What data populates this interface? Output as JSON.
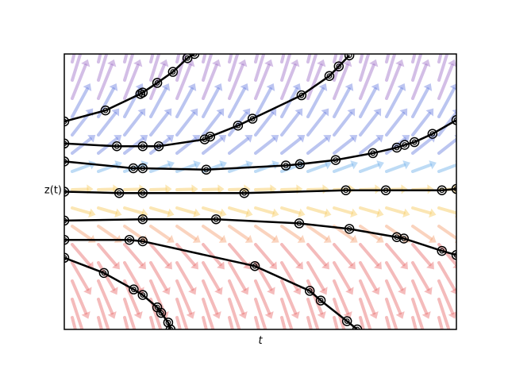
{
  "chart_data": {
    "type": "trajectory",
    "x_label": "t",
    "y_label": "z(t)",
    "xlim": [
      0,
      1
    ],
    "ylim": [
      -1,
      1
    ],
    "color": "#000000",
    "series": [
      {
        "x": [
          0,
          0.105,
          0.194,
          0.2,
          0.237,
          0.277,
          0.314,
          0.332
        ],
        "values": [
          0.51,
          0.59,
          0.71,
          0.72,
          0.79,
          0.87,
          0.97,
          1.0
        ]
      },
      {
        "x": [
          0,
          0.134,
          0.2,
          0.241,
          0.358,
          0.372,
          0.443,
          0.48,
          0.605,
          0.676,
          0.7,
          0.727
        ],
        "values": [
          0.35,
          0.33,
          0.33,
          0.33,
          0.38,
          0.4,
          0.48,
          0.53,
          0.7,
          0.84,
          0.91,
          0.99
        ]
      },
      {
        "x": [
          0,
          0.176,
          0.2,
          0.362,
          0.565,
          0.601,
          0.692,
          0.787,
          0.848,
          0.868,
          0.893,
          0.939,
          1.0
        ],
        "values": [
          0.22,
          0.17,
          0.17,
          0.16,
          0.19,
          0.2,
          0.23,
          0.28,
          0.32,
          0.34,
          0.36,
          0.42,
          0.52
        ]
      },
      {
        "x": [
          0,
          0.14,
          0.2,
          0.459,
          0.718,
          0.82,
          0.963,
          1.0
        ],
        "values": [
          0.0,
          -0.01,
          -0.01,
          -0.01,
          0.01,
          0.01,
          0.01,
          0.02
        ]
      },
      {
        "x": [
          0,
          0.2,
          0.387,
          0.599,
          0.727,
          0.848,
          0.866,
          0.963,
          1.0
        ],
        "values": [
          -0.21,
          -0.2,
          -0.2,
          -0.23,
          -0.27,
          -0.33,
          -0.34,
          -0.43,
          -0.46
        ]
      },
      {
        "x": [
          0,
          0.166,
          0.2,
          0.486,
          0.626,
          0.654,
          0.721,
          0.747
        ],
        "values": [
          -0.35,
          -0.35,
          -0.36,
          -0.54,
          -0.72,
          -0.79,
          -0.94,
          -1.0
        ]
      },
      {
        "x": [
          0,
          0.101,
          0.177,
          0.2,
          0.237,
          0.247,
          0.265,
          0.271
        ],
        "values": [
          -0.48,
          -0.59,
          -0.71,
          -0.75,
          -0.84,
          -0.88,
          -0.95,
          -1.0
        ]
      }
    ]
  }
}
